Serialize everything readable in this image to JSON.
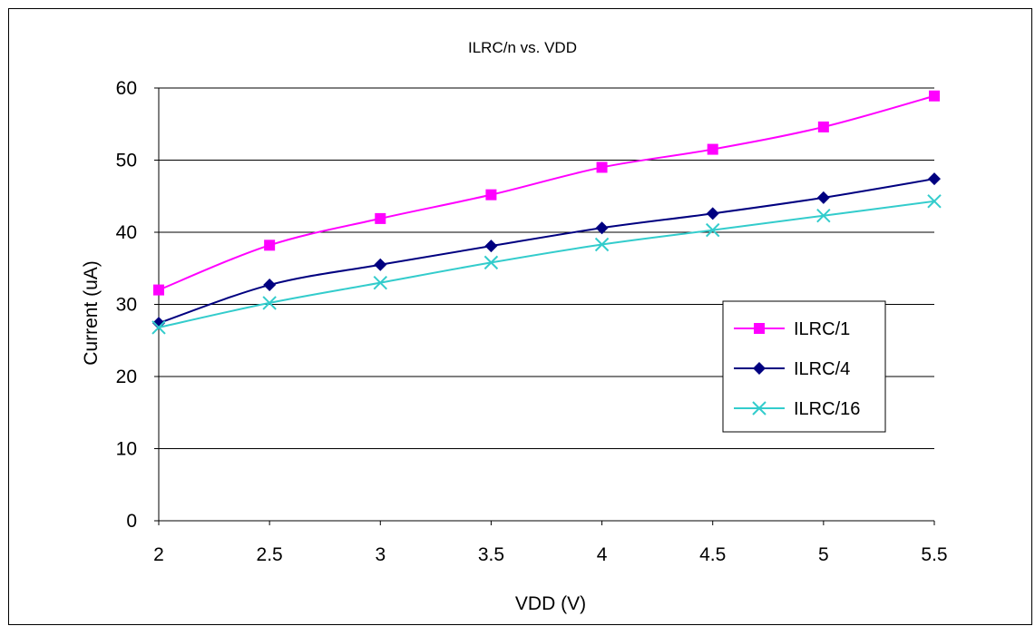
{
  "chart_data": {
    "type": "line",
    "title": "ILRC/n vs. VDD",
    "xlabel": "VDD (V)",
    "ylabel": "Current (uA)",
    "x": [
      2,
      2.5,
      3,
      3.5,
      4,
      4.5,
      5,
      5.5
    ],
    "xlim": [
      2,
      5.5
    ],
    "ylim": [
      0,
      60
    ],
    "yticks": [
      0,
      10,
      20,
      30,
      40,
      50,
      60
    ],
    "xtick_labels": [
      "2",
      "2.5",
      "3",
      "3.5",
      "4",
      "4.5",
      "5",
      "5.5"
    ],
    "grid": "horizontal",
    "legend_position": "right",
    "series": [
      {
        "name": "ILRC/1",
        "values": [
          32.0,
          38.2,
          41.9,
          45.2,
          49.0,
          51.5,
          54.6,
          58.9
        ],
        "color": "#FF00FF",
        "marker": "square"
      },
      {
        "name": "ILRC/4",
        "values": [
          27.4,
          32.7,
          35.5,
          38.1,
          40.6,
          42.6,
          44.8,
          47.4
        ],
        "color": "#000080",
        "marker": "diamond"
      },
      {
        "name": "ILRC/16",
        "values": [
          26.8,
          30.2,
          33.0,
          35.8,
          38.3,
          40.3,
          42.3,
          44.3
        ],
        "color": "#33CCCC",
        "marker": "x"
      }
    ]
  }
}
